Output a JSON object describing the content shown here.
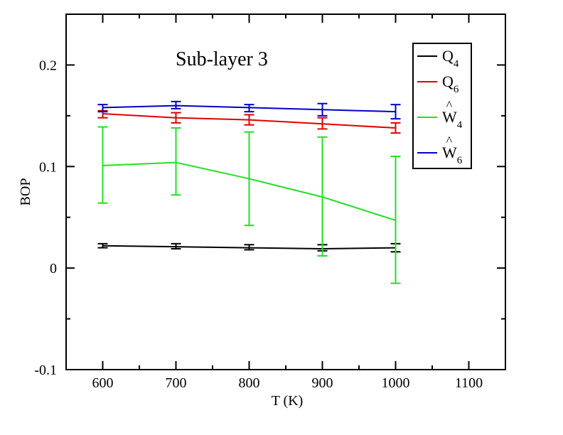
{
  "chart_data": {
    "type": "line",
    "title": "",
    "annotation": "Sub-layer 3",
    "xlabel": "T (K)",
    "ylabel": "BOP",
    "xlim": [
      550,
      1150
    ],
    "ylim": [
      -0.1,
      0.25
    ],
    "xticks": [
      600,
      700,
      800,
      900,
      1000,
      1100
    ],
    "xtick_labels": [
      "600",
      "700",
      "800",
      "900",
      "1000",
      "1100"
    ],
    "yticks": [
      -0.1,
      0,
      0.1,
      0.2
    ],
    "ytick_labels": [
      "-0.1",
      "0",
      "0.1",
      "0.2"
    ],
    "grid": false,
    "legend_position": "top-right",
    "x": [
      600,
      700,
      800,
      900,
      1000
    ],
    "series": [
      {
        "name": "Q4",
        "base": "Q",
        "sub": "4",
        "hat": false,
        "color": "#000000",
        "values": [
          0.022,
          0.021,
          0.02,
          0.019,
          0.02
        ],
        "err_low": [
          0.02,
          0.019,
          0.018,
          0.017,
          0.016
        ],
        "err_high": [
          0.024,
          0.024,
          0.023,
          0.023,
          0.024
        ]
      },
      {
        "name": "Q6",
        "base": "Q",
        "sub": "6",
        "hat": false,
        "color": "#e00000",
        "values": [
          0.152,
          0.148,
          0.146,
          0.142,
          0.138
        ],
        "err_low": [
          0.148,
          0.143,
          0.141,
          0.137,
          0.133
        ],
        "err_high": [
          0.155,
          0.153,
          0.151,
          0.148,
          0.143
        ]
      },
      {
        "name": "W4",
        "base": "W",
        "sub": "4",
        "hat": true,
        "color": "#22e022",
        "values": [
          0.101,
          0.104,
          0.088,
          0.07,
          0.047
        ],
        "err_low": [
          0.064,
          0.072,
          0.042,
          0.012,
          -0.015
        ],
        "err_high": [
          0.139,
          0.138,
          0.134,
          0.129,
          0.11
        ]
      },
      {
        "name": "W6",
        "base": "W",
        "sub": "6",
        "hat": true,
        "color": "#0000cc",
        "values": [
          0.158,
          0.16,
          0.158,
          0.156,
          0.154
        ],
        "err_low": [
          0.154,
          0.157,
          0.154,
          0.15,
          0.147
        ],
        "err_high": [
          0.161,
          0.164,
          0.161,
          0.162,
          0.161
        ]
      }
    ]
  }
}
